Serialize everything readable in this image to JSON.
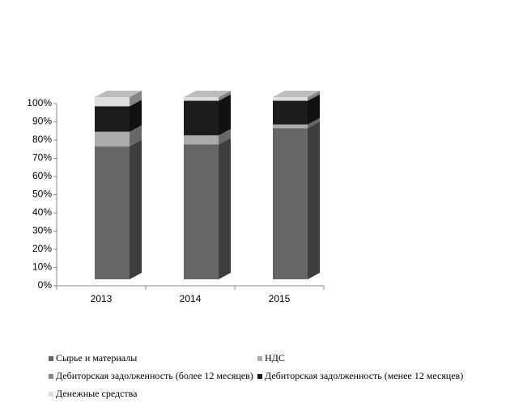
{
  "chart_data": {
    "type": "stacked_bar_3d",
    "categories": [
      "2013",
      "2014",
      "2015"
    ],
    "series": [
      {
        "name": "Сырье и материалы",
        "color": "#666666",
        "values": [
          73,
          74,
          83
        ]
      },
      {
        "name": "НДС",
        "color": "#ababab",
        "values": [
          8,
          5,
          2
        ]
      },
      {
        "name": "Дебиторская задолженность (более 12  месяцев)",
        "color": "#858585",
        "values": [
          0,
          0,
          0
        ]
      },
      {
        "name": "Дебиторская задолженность (менее 12  месяцев)",
        "color": "#1c1c1c",
        "values": [
          14,
          19,
          13
        ]
      },
      {
        "name": "Денежные средства",
        "color": "#dedede",
        "values": [
          5,
          2,
          2
        ]
      }
    ],
    "ylim": [
      0,
      100
    ],
    "yticks": [
      {
        "value": 0,
        "label": "0%"
      },
      {
        "value": 10,
        "label": "10%"
      },
      {
        "value": 20,
        "label": "20%"
      },
      {
        "value": 30,
        "label": "30%"
      },
      {
        "value": 40,
        "label": "40%"
      },
      {
        "value": 50,
        "label": "50%"
      },
      {
        "value": 60,
        "label": "60%"
      },
      {
        "value": 70,
        "label": "70%"
      },
      {
        "value": 80,
        "label": "80%"
      },
      {
        "value": 90,
        "label": "90%"
      },
      {
        "value": 100,
        "label": "100%"
      }
    ],
    "legend": "bottom"
  }
}
